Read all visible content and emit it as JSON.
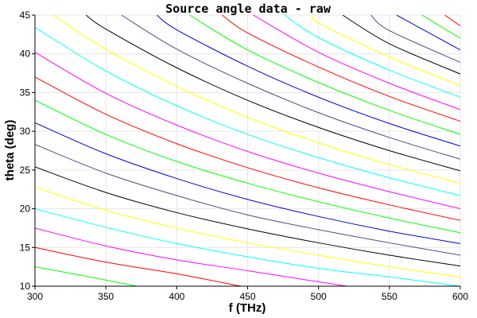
{
  "chart_data": {
    "type": "line",
    "title": "Source angle data - raw",
    "xlabel": "f (THz)",
    "ylabel": "theta (deg)",
    "xlim": [
      300,
      600
    ],
    "ylim": [
      10,
      45
    ],
    "xticks": [
      300,
      350,
      400,
      450,
      500,
      550,
      600
    ],
    "yticks": [
      10,
      15,
      20,
      25,
      30,
      35,
      40,
      45
    ],
    "grid": true,
    "legend": "none",
    "series": [
      {
        "color": "#00ff00",
        "points": [
          [
            300,
            12.5
          ],
          [
            330,
            11.5
          ],
          [
            372,
            10.0
          ]
        ]
      },
      {
        "color": "#ff0000",
        "points": [
          [
            300,
            15.0
          ],
          [
            350,
            13.1
          ],
          [
            400,
            11.6
          ],
          [
            445,
            10.0
          ]
        ]
      },
      {
        "color": "#ff00ff",
        "points": [
          [
            300,
            17.5
          ],
          [
            350,
            15.2
          ],
          [
            400,
            13.4
          ],
          [
            450,
            12.0
          ],
          [
            520,
            10.0
          ]
        ]
      },
      {
        "color": "#00ffff",
        "points": [
          [
            300,
            20.0
          ],
          [
            350,
            17.6
          ],
          [
            400,
            15.5
          ],
          [
            450,
            13.8
          ],
          [
            500,
            12.3
          ],
          [
            550,
            11.2
          ],
          [
            600,
            10.0
          ]
        ]
      },
      {
        "color": "#ffff00",
        "points": [
          [
            300,
            22.8
          ],
          [
            350,
            19.8
          ],
          [
            400,
            17.5
          ],
          [
            450,
            15.6
          ],
          [
            500,
            14.0
          ],
          [
            550,
            12.5
          ],
          [
            600,
            11.2
          ]
        ]
      },
      {
        "color": "#000000",
        "points": [
          [
            300,
            25.4
          ],
          [
            350,
            22.1
          ],
          [
            400,
            19.5
          ],
          [
            450,
            17.4
          ],
          [
            500,
            15.6
          ],
          [
            550,
            14.0
          ],
          [
            600,
            12.6
          ]
        ]
      },
      {
        "color": "#4d4d80",
        "points": [
          [
            300,
            28.3
          ],
          [
            350,
            24.6
          ],
          [
            400,
            21.7
          ],
          [
            450,
            19.2
          ],
          [
            500,
            17.3
          ],
          [
            550,
            15.6
          ],
          [
            600,
            14.0
          ]
        ]
      },
      {
        "color": "#0000cc",
        "points": [
          [
            300,
            31.1
          ],
          [
            350,
            27.1
          ],
          [
            400,
            23.9
          ],
          [
            450,
            21.2
          ],
          [
            500,
            19.0
          ],
          [
            550,
            17.1
          ],
          [
            600,
            15.5
          ]
        ]
      },
      {
        "color": "#00ff00",
        "points": [
          [
            300,
            34.0
          ],
          [
            350,
            29.6
          ],
          [
            400,
            26.1
          ],
          [
            450,
            23.3
          ],
          [
            500,
            20.9
          ],
          [
            550,
            18.8
          ],
          [
            600,
            16.9
          ]
        ]
      },
      {
        "color": "#ff0000",
        "points": [
          [
            300,
            37.0
          ],
          [
            350,
            32.2
          ],
          [
            400,
            28.4
          ],
          [
            450,
            25.3
          ],
          [
            500,
            22.7
          ],
          [
            550,
            20.5
          ],
          [
            600,
            18.5
          ]
        ]
      },
      {
        "color": "#ff00ff",
        "points": [
          [
            300,
            40.2
          ],
          [
            350,
            34.9
          ],
          [
            400,
            30.8
          ],
          [
            450,
            27.4
          ],
          [
            500,
            24.6
          ],
          [
            550,
            22.2
          ],
          [
            600,
            20.0
          ]
        ]
      },
      {
        "color": "#00ffff",
        "points": [
          [
            300,
            43.4
          ],
          [
            350,
            37.8
          ],
          [
            400,
            33.3
          ],
          [
            450,
            29.6
          ],
          [
            500,
            26.6
          ],
          [
            550,
            24.0
          ],
          [
            600,
            21.7
          ]
        ]
      },
      {
        "color": "#ffff00",
        "points": [
          [
            313,
            45.0
          ],
          [
            350,
            40.6
          ],
          [
            400,
            35.8
          ],
          [
            450,
            31.8
          ],
          [
            500,
            28.5
          ],
          [
            550,
            25.7
          ],
          [
            600,
            23.3
          ]
        ]
      },
      {
        "color": "#000000",
        "points": [
          [
            336,
            45.0
          ],
          [
            350,
            43.2
          ],
          [
            400,
            38.2
          ],
          [
            450,
            34.0
          ],
          [
            500,
            30.5
          ],
          [
            550,
            27.5
          ],
          [
            600,
            24.9
          ]
        ]
      },
      {
        "color": "#4d4d80",
        "points": [
          [
            361,
            45.0
          ],
          [
            400,
            40.6
          ],
          [
            450,
            36.2
          ],
          [
            500,
            32.4
          ],
          [
            550,
            29.2
          ],
          [
            600,
            26.4
          ]
        ]
      },
      {
        "color": "#0000cc",
        "points": [
          [
            386,
            45.0
          ],
          [
            400,
            43.1
          ],
          [
            450,
            38.4
          ],
          [
            500,
            34.4
          ],
          [
            550,
            31.0
          ],
          [
            600,
            28.1
          ]
        ]
      },
      {
        "color": "#00ff00",
        "points": [
          [
            409,
            45.0
          ],
          [
            450,
            40.5
          ],
          [
            500,
            36.3
          ],
          [
            550,
            32.7
          ],
          [
            600,
            29.6
          ]
        ]
      },
      {
        "color": "#ff0000",
        "points": [
          [
            432,
            45.0
          ],
          [
            450,
            42.7
          ],
          [
            500,
            38.3
          ],
          [
            550,
            34.5
          ],
          [
            600,
            31.3
          ]
        ]
      },
      {
        "color": "#ff00ff",
        "points": [
          [
            454,
            45.0
          ],
          [
            500,
            40.2
          ],
          [
            550,
            36.2
          ],
          [
            600,
            32.8
          ]
        ]
      },
      {
        "color": "#00ffff",
        "points": [
          [
            476,
            45.0
          ],
          [
            500,
            42.1
          ],
          [
            550,
            37.9
          ],
          [
            600,
            34.4
          ]
        ]
      },
      {
        "color": "#ffff00",
        "points": [
          [
            497,
            45.0
          ],
          [
            500,
            44.0
          ],
          [
            550,
            39.6
          ],
          [
            600,
            35.9
          ]
        ]
      },
      {
        "color": "#000000",
        "points": [
          [
            517,
            45.0
          ],
          [
            550,
            41.3
          ],
          [
            600,
            37.4
          ]
        ]
      },
      {
        "color": "#4d4d80",
        "points": [
          [
            537,
            45.0
          ],
          [
            550,
            43.0
          ],
          [
            600,
            38.9
          ]
        ]
      },
      {
        "color": "#0000cc",
        "points": [
          [
            555,
            45.0
          ],
          [
            600,
            40.5
          ]
        ]
      },
      {
        "color": "#00ff00",
        "points": [
          [
            573,
            45.0
          ],
          [
            600,
            42.0
          ]
        ]
      },
      {
        "color": "#ff0000",
        "points": [
          [
            589,
            45.0
          ],
          [
            600,
            43.6
          ]
        ]
      }
    ]
  }
}
